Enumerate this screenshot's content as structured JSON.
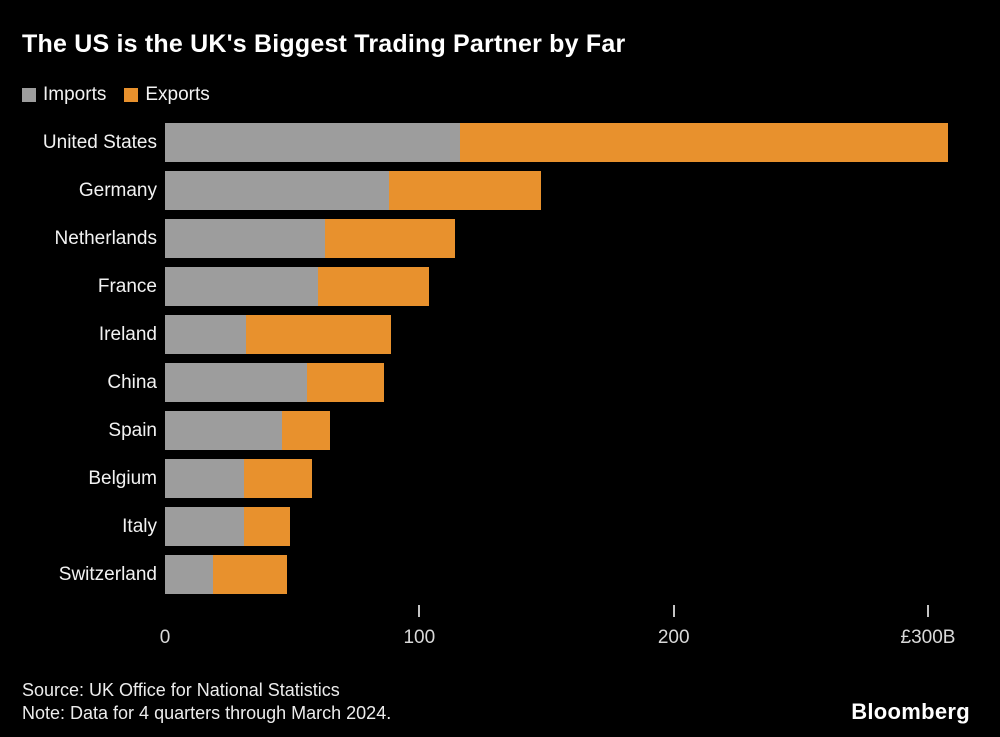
{
  "title": "The US is the UK's Biggest Trading Partner by Far",
  "legend": [
    {
      "label": "Imports",
      "color": "#9d9d9d"
    },
    {
      "label": "Exports",
      "color": "#e8912d"
    }
  ],
  "chart_data": {
    "type": "bar",
    "orientation": "horizontal",
    "stacked": true,
    "title": "The US is the UK's Biggest Trading Partner by Far",
    "categories": [
      "United States",
      "Germany",
      "Netherlands",
      "France",
      "Ireland",
      "China",
      "Spain",
      "Belgium",
      "Italy",
      "Switzerland"
    ],
    "series": [
      {
        "name": "Imports",
        "color": "#9d9d9d",
        "values": [
          116,
          88,
          63,
          60,
          32,
          56,
          46,
          31,
          31,
          19
        ]
      },
      {
        "name": "Exports",
        "color": "#e8912d",
        "values": [
          192,
          60,
          51,
          44,
          57,
          30,
          19,
          27,
          18,
          29
        ]
      }
    ],
    "xlabel": "",
    "ylabel": "",
    "xlim": [
      0,
      300
    ],
    "x_ticks": [
      {
        "value": 0,
        "label": "0"
      },
      {
        "value": 100,
        "label": "100"
      },
      {
        "value": 200,
        "label": "200"
      },
      {
        "value": 300,
        "label": "£300B"
      }
    ],
    "grid": false,
    "legend_position": "top-left"
  },
  "footer": {
    "source": "Source: UK Office for National Statistics",
    "note": "Note: Data for 4 quarters through March 2024.",
    "brand": "Bloomberg"
  }
}
